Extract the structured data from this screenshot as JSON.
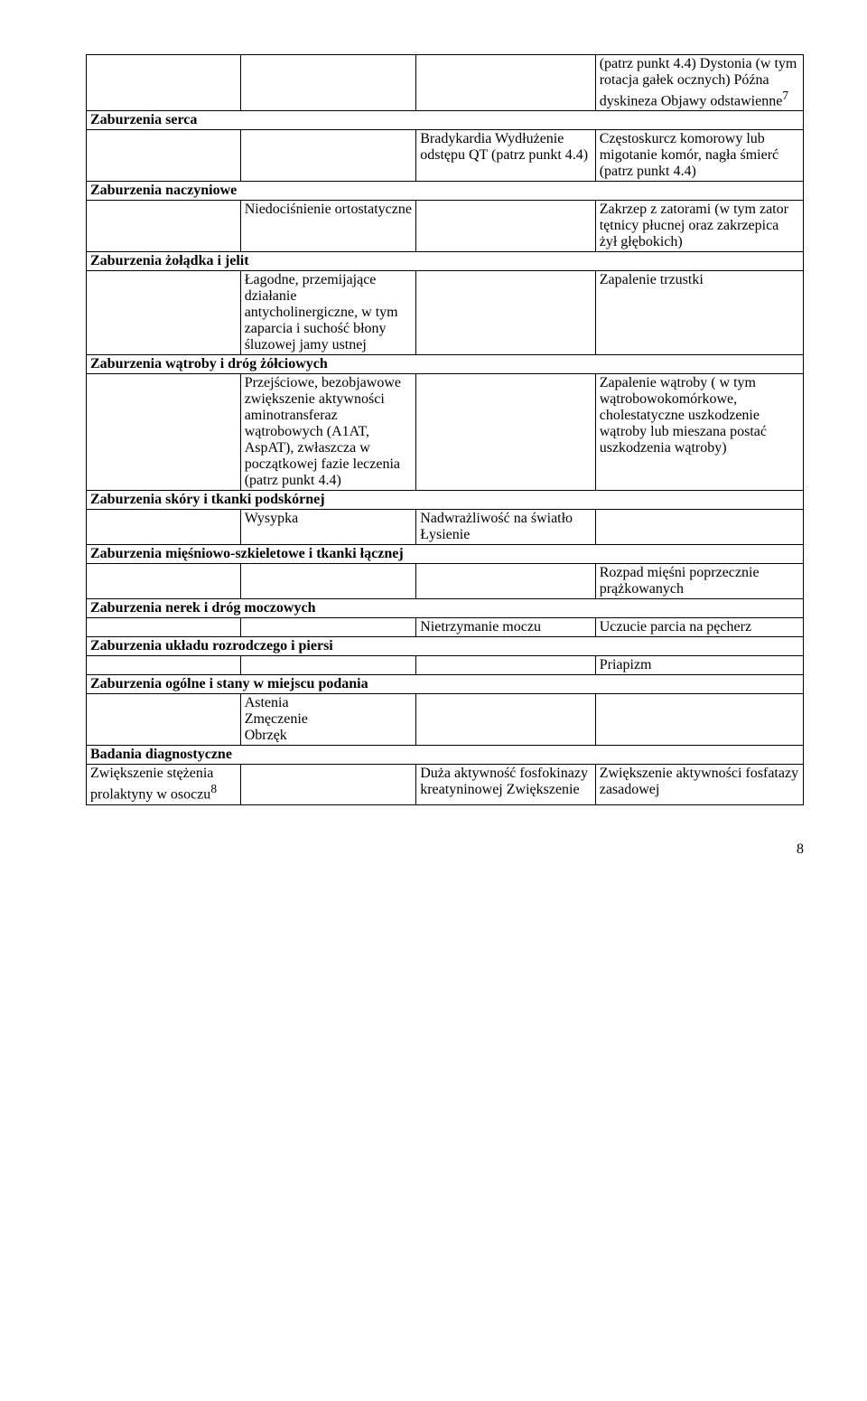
{
  "rows": {
    "r0c3": "(patrz punkt 4.4) Dystonia (w tym rotacja gałek ocznych) Późna dyskineza Objawy odstawienne",
    "r0c3_sup": "7",
    "serca_header": "Zaburzenia serca",
    "serca_c2": "Bradykardia Wydłużenie odstępu QT (patrz punkt 4.4)",
    "serca_c3": "Częstoskurcz komorowy lub migotanie komór, nagła śmierć (patrz punkt 4.4)",
    "naczyn_header": "Zaburzenia naczyniowe",
    "naczyn_c1": "Niedociśnienie ortostatyczne",
    "naczyn_c3": "Zakrzep z zatorami (w tym zator tętnicy płucnej oraz zakrzepica żył głębokich)",
    "zoladka_header": "Zaburzenia żołądka i jelit",
    "zoladka_c1": "Łagodne, przemijające działanie antycholinergiczne, w tym zaparcia i suchość błony śluzowej jamy ustnej",
    "zoladka_c3": "Zapalenie trzustki",
    "watroby_header": "Zaburzenia wątroby i dróg żółciowych",
    "watroby_c1": "Przejściowe, bezobjawowe zwiększenie aktywności aminotransferaz wątrobowych (A1AT, AspAT), zwłaszcza w początkowej fazie leczenia (patrz punkt 4.4)",
    "watroby_c3": "Zapalenie wątroby ( w tym wątrobowokomórkowe, cholestatyczne uszkodzenie wątroby lub mieszana postać uszkodzenia wątroby)",
    "skory_header": "Zaburzenia skóry i tkanki podskórnej",
    "skory_c1": "Wysypka",
    "skory_c2": "Nadwrażliwość na światło\nŁysienie",
    "miesn_header": "Zaburzenia mięśniowo-szkieletowe i tkanki łącznej",
    "miesn_c3": "Rozpad mięśni poprzecznie prążkowanych",
    "nerek_header": "Zaburzenia nerek i dróg moczowych",
    "nerek_c2": "Nietrzymanie moczu",
    "nerek_c3": "Uczucie parcia na pęcherz",
    "rozrod_header": "Zaburzenia układu rozrodczego i piersi",
    "rozrod_c3": "Priapizm",
    "ogolne_header": "Zaburzenia ogólne i stany w miejscu podania",
    "ogolne_c1": "Astenia\nZmęczenie\nObrzęk",
    "badania_header": "Badania diagnostyczne",
    "badania_c0": "Zwiększenie stężenia prolaktyny w osoczu",
    "badania_c0_sup": "8",
    "badania_c2": "Duża aktywność fosfokinazy kreatyninowej Zwiększenie",
    "badania_c3": "Zwiększenie aktywności fosfatazy zasadowej"
  },
  "page_number": "8"
}
